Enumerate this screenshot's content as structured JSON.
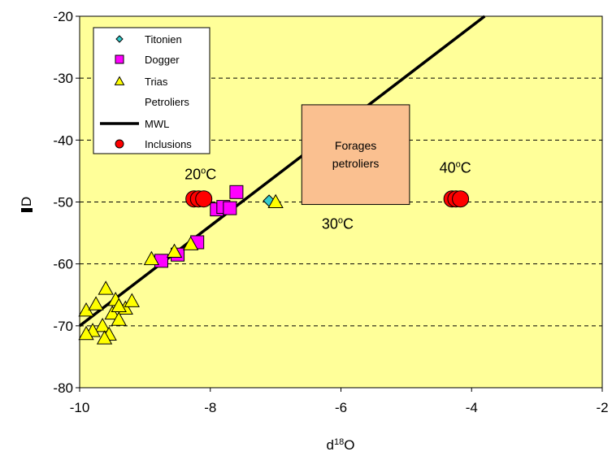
{
  "chart_data": {
    "type": "scatter",
    "title": "",
    "xlabel": "d",
    "xlabel_sup": "18",
    "xlabel_suffix": "O",
    "ylabel": "D",
    "xlim": [
      -10,
      -2
    ],
    "ylim": [
      -80,
      -20
    ],
    "x_ticks": [
      "-10",
      "-8",
      "-6",
      "-4",
      "-2"
    ],
    "y_ticks": [
      "-20",
      "-30",
      "-40",
      "-50",
      "-60",
      "-70",
      "-80"
    ],
    "plot_background": "#ffff99",
    "gridlines": "horizontal dashed",
    "legend_position": "top-left",
    "series": [
      {
        "name": "Titonien",
        "marker": "diamond",
        "color": "#33cccc",
        "points": [
          [
            -7.1,
            -49.8
          ]
        ]
      },
      {
        "name": "Dogger",
        "marker": "square",
        "color": "#ff00ff",
        "points": [
          [
            -8.75,
            -59.5
          ],
          [
            -8.5,
            -58.5
          ],
          [
            -8.2,
            -56.5
          ],
          [
            -7.9,
            -51.2
          ],
          [
            -7.8,
            -50.8
          ],
          [
            -7.7,
            -51.0
          ],
          [
            -7.6,
            -48.4
          ]
        ]
      },
      {
        "name": "Trias",
        "marker": "triangle",
        "color": "#ffff00",
        "points": [
          [
            -9.9,
            -67.5
          ],
          [
            -9.75,
            -66.5
          ],
          [
            -9.6,
            -64.0
          ],
          [
            -9.45,
            -65.8
          ],
          [
            -9.3,
            -67.2
          ],
          [
            -9.2,
            -66.0
          ],
          [
            -9.5,
            -68.0
          ],
          [
            -9.4,
            -69.0
          ],
          [
            -9.65,
            -70.0
          ],
          [
            -9.8,
            -70.8
          ],
          [
            -9.9,
            -71.3
          ],
          [
            -9.55,
            -71.4
          ],
          [
            -9.62,
            -72.0
          ],
          [
            -9.4,
            -66.8
          ],
          [
            -8.9,
            -59.2
          ],
          [
            -8.55,
            -58.0
          ],
          [
            -8.3,
            -56.8
          ],
          [
            -7.0,
            -50.0
          ]
        ]
      },
      {
        "name": "Petroliers",
        "marker": "none",
        "color": "#000000",
        "points": []
      },
      {
        "name": "MWL",
        "marker": "line",
        "color": "#000000",
        "line": [
          [
            -10,
            -70
          ],
          [
            -3.8,
            -20
          ]
        ]
      },
      {
        "name": "Inclusions",
        "marker": "circle",
        "color": "#ff0000",
        "points": [
          [
            -8.25,
            -49.5
          ],
          [
            -8.18,
            -49.5
          ],
          [
            -8.1,
            -49.5
          ],
          [
            -4.3,
            -49.5
          ],
          [
            -4.24,
            -49.5
          ],
          [
            -4.17,
            -49.5
          ]
        ]
      }
    ],
    "annotations": [
      {
        "text": "20",
        "sup": "o",
        "unit": "C",
        "x": -8.15,
        "y": -46.3
      },
      {
        "text": "30",
        "sup": "o",
        "unit": "C",
        "x": -6.05,
        "y": -54.3
      },
      {
        "text": "40",
        "sup": "o",
        "unit": "C",
        "x": -4.25,
        "y": -45.3
      }
    ],
    "box": {
      "text_line1": "Forages",
      "text_line2": "petroliers",
      "x0": -6.6,
      "x1": -4.95,
      "y0": -34.3,
      "y1": -50.4,
      "fill": "#fac090"
    }
  }
}
